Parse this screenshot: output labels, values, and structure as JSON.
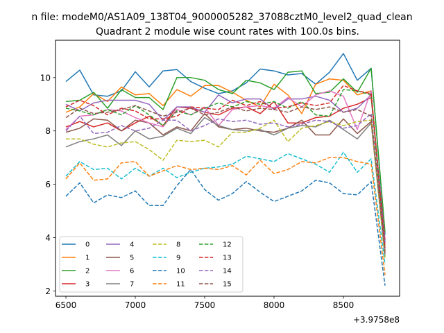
{
  "figure": {
    "suptitle": "n file: modeM0/AS1A09_138T04_9000005282_37088cztM0_level2_quad_clean",
    "title": "Quadrant 2 module wise count rates with 100.0s bins.",
    "offset_text": "+3.9758e8"
  },
  "chart_data": {
    "type": "line",
    "title": "Quadrant 2 module wise count rates with 100.0s bins.",
    "x_offset": 397580000,
    "x": [
      6500,
      6600,
      6700,
      6800,
      6900,
      7000,
      7100,
      7200,
      7300,
      7400,
      7500,
      7600,
      7700,
      7800,
      7900,
      8000,
      8100,
      8200,
      8300,
      8400,
      8500,
      8600,
      8700,
      8800
    ],
    "xlim": [
      6425,
      8905
    ],
    "ylim": [
      1.8,
      11.4
    ],
    "x_ticks": [
      6500,
      7000,
      7500,
      8000,
      8500
    ],
    "x_tick_labels": [
      "6500",
      "7000",
      "7500",
      "8000",
      "8500"
    ],
    "y_ticks": [
      2,
      4,
      6,
      8,
      10
    ],
    "y_tick_labels": [
      "2",
      "4",
      "6",
      "8",
      "10"
    ],
    "legend_position": "lower-left",
    "legend_columns": 4,
    "grid": false,
    "series": [
      {
        "name": "0",
        "color": "#1f77b4",
        "dash": "solid",
        "values": [
          9.85,
          10.28,
          9.35,
          9.3,
          9.5,
          10.22,
          9.65,
          10.25,
          10.3,
          9.85,
          9.6,
          9.4,
          9.5,
          9.8,
          10.32,
          10.25,
          10.1,
          10.15,
          9.75,
          10.2,
          10.9,
          9.9,
          10.35,
          4.1
        ]
      },
      {
        "name": "1",
        "color": "#ff7f0e",
        "dash": "solid",
        "values": [
          8.7,
          8.9,
          9.4,
          9.1,
          9.65,
          9.35,
          9.4,
          8.95,
          9.55,
          9.3,
          9.7,
          9.7,
          9.45,
          9.15,
          8.9,
          9.75,
          9.35,
          8.65,
          9.75,
          9.95,
          9.9,
          9.35,
          9.5,
          3.7
        ]
      },
      {
        "name": "2",
        "color": "#2ca02c",
        "dash": "solid",
        "values": [
          9.1,
          9.15,
          9.45,
          8.85,
          9.55,
          9.25,
          9.25,
          8.8,
          10.0,
          10.0,
          9.9,
          9.55,
          9.4,
          9.9,
          9.8,
          9.55,
          10.2,
          10.25,
          9.4,
          9.45,
          9.95,
          9.45,
          10.35,
          4.2
        ]
      },
      {
        "name": "3",
        "color": "#d62728",
        "dash": "solid",
        "values": [
          8.15,
          8.35,
          8.15,
          8.3,
          8.0,
          8.3,
          8.55,
          8.2,
          8.9,
          8.85,
          8.7,
          8.6,
          8.85,
          8.9,
          8.65,
          9.1,
          8.3,
          8.3,
          8.5,
          8.55,
          8.85,
          9.0,
          9.25,
          3.9
        ]
      },
      {
        "name": "4",
        "color": "#9467bd",
        "dash": "solid",
        "values": [
          9.0,
          8.75,
          9.05,
          9.15,
          9.15,
          9.15,
          9.0,
          8.4,
          8.9,
          8.9,
          8.7,
          9.35,
          9.05,
          9.2,
          9.2,
          8.8,
          9.2,
          9.2,
          9.3,
          9.15,
          8.7,
          8.85,
          9.35,
          3.8
        ]
      },
      {
        "name": "5",
        "color": "#8c564b",
        "dash": "solid",
        "values": [
          7.95,
          8.1,
          8.45,
          8.4,
          8.0,
          8.4,
          8.3,
          7.85,
          8.15,
          8.0,
          8.65,
          8.15,
          8.05,
          8.1,
          8.0,
          7.95,
          8.1,
          8.4,
          7.85,
          7.85,
          8.45,
          7.9,
          8.35,
          3.5
        ]
      },
      {
        "name": "6",
        "color": "#e377c2",
        "dash": "solid",
        "values": [
          8.05,
          8.55,
          8.6,
          8.8,
          8.75,
          8.5,
          8.3,
          8.15,
          8.8,
          8.6,
          8.9,
          8.2,
          8.8,
          8.9,
          8.95,
          8.85,
          9.25,
          8.9,
          9.35,
          9.5,
          9.3,
          8.05,
          9.5,
          3.4
        ]
      },
      {
        "name": "7",
        "color": "#7f7f7f",
        "dash": "solid",
        "values": [
          7.4,
          7.6,
          7.7,
          7.85,
          7.45,
          8.0,
          7.7,
          7.8,
          8.1,
          7.9,
          8.5,
          8.2,
          8.05,
          8.0,
          8.05,
          7.85,
          8.1,
          8.2,
          8.15,
          8.4,
          8.05,
          7.7,
          8.3,
          3.3
        ]
      },
      {
        "name": "8",
        "color": "#bcbd22",
        "dash": "dashed",
        "values": [
          7.7,
          7.7,
          7.5,
          7.4,
          7.55,
          7.6,
          7.3,
          6.9,
          7.65,
          7.6,
          7.65,
          7.4,
          7.95,
          7.95,
          8.1,
          8.4,
          7.6,
          8.1,
          8.2,
          8.35,
          8.2,
          8.35,
          8.4,
          3.2
        ]
      },
      {
        "name": "9",
        "color": "#17becf",
        "dash": "dashed",
        "values": [
          6.3,
          6.85,
          6.55,
          6.6,
          6.2,
          6.6,
          6.3,
          6.6,
          6.25,
          6.45,
          6.6,
          6.65,
          6.75,
          7.05,
          6.95,
          6.85,
          7.15,
          6.95,
          6.75,
          6.45,
          7.2,
          6.45,
          6.95,
          3.0
        ]
      },
      {
        "name": "10",
        "color": "#1f77b4",
        "dash": "dashed",
        "values": [
          5.55,
          6.05,
          5.3,
          5.6,
          5.5,
          5.75,
          5.2,
          5.2,
          5.95,
          6.55,
          5.8,
          5.4,
          5.65,
          6.1,
          5.7,
          5.35,
          5.55,
          5.75,
          6.15,
          6.05,
          5.65,
          5.6,
          6.1,
          2.2
        ]
      },
      {
        "name": "11",
        "color": "#ff7f0e",
        "dash": "dashed",
        "values": [
          6.2,
          6.8,
          6.15,
          6.2,
          6.8,
          6.85,
          6.3,
          6.5,
          6.7,
          6.55,
          6.6,
          6.55,
          6.7,
          6.35,
          6.9,
          6.4,
          6.55,
          6.85,
          6.8,
          7.0,
          7.0,
          6.85,
          6.75,
          2.6
        ]
      },
      {
        "name": "12",
        "color": "#2ca02c",
        "dash": "dashed",
        "values": [
          8.85,
          8.75,
          8.6,
          8.8,
          8.6,
          8.95,
          8.6,
          8.2,
          8.75,
          8.6,
          8.85,
          9.05,
          8.9,
          9.1,
          9.0,
          9.1,
          8.85,
          9.1,
          8.6,
          8.55,
          9.55,
          9.5,
          9.35,
          3.5
        ]
      },
      {
        "name": "13",
        "color": "#d62728",
        "dash": "dashed",
        "values": [
          8.9,
          9.15,
          8.95,
          8.6,
          8.85,
          8.75,
          8.45,
          8.45,
          8.55,
          8.9,
          8.85,
          8.8,
          9.15,
          8.95,
          9.1,
          8.85,
          8.9,
          9.05,
          8.95,
          9.05,
          9.7,
          9.5,
          9.4,
          3.6
        ]
      },
      {
        "name": "14",
        "color": "#9467bd",
        "dash": "dashed",
        "values": [
          8.0,
          8.55,
          7.9,
          7.95,
          8.2,
          8.0,
          8.1,
          8.4,
          8.4,
          8.0,
          8.2,
          8.45,
          8.35,
          8.4,
          8.25,
          8.3,
          8.15,
          8.25,
          8.4,
          8.35,
          8.1,
          8.2,
          8.65,
          3.4
        ]
      },
      {
        "name": "15",
        "color": "#8c564b",
        "dash": "dashed",
        "values": [
          8.5,
          8.85,
          8.65,
          8.7,
          8.8,
          8.95,
          8.75,
          8.55,
          8.7,
          8.85,
          8.6,
          8.7,
          8.9,
          8.75,
          8.85,
          8.8,
          8.7,
          8.9,
          8.8,
          8.9,
          8.7,
          8.8,
          8.55,
          3.4
        ]
      }
    ]
  }
}
